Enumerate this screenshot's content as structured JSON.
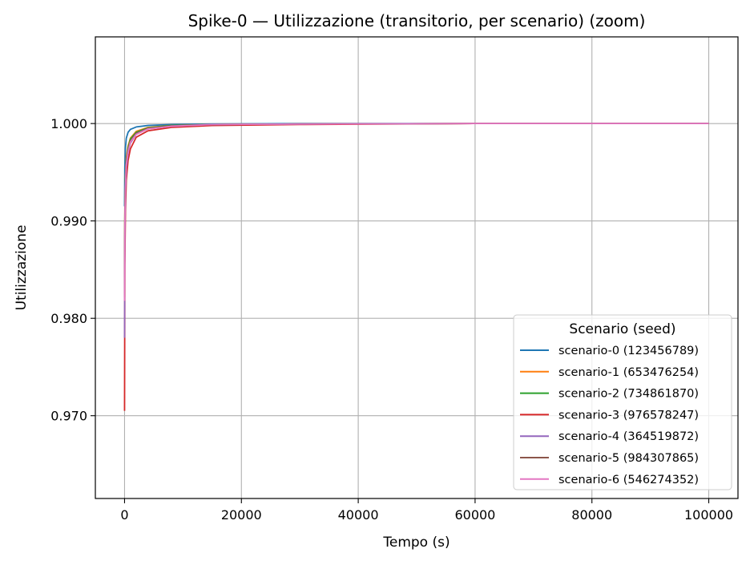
{
  "chart_data": {
    "type": "line",
    "title": "Spike-0 — Utilizzazione (transitorio, per scenario) (zoom)",
    "xlabel": "Tempo (s)",
    "ylabel": "Utilizzazione",
    "xlim": [
      -5000,
      105000
    ],
    "ylim": [
      0.9615,
      1.0089
    ],
    "xticks": [
      0,
      20000,
      40000,
      60000,
      80000,
      100000
    ],
    "xtick_labels": [
      "0",
      "20000",
      "40000",
      "60000",
      "80000",
      "100000"
    ],
    "yticks": [
      0.97,
      0.98,
      0.99,
      1.0
    ],
    "ytick_labels": [
      "0.970",
      "0.980",
      "0.990",
      "1.000"
    ],
    "grid": true,
    "legend": {
      "title": "Scenario (seed)",
      "placement": "lower-right"
    },
    "series": [
      {
        "name": "scenario-0 (123456789)",
        "color": "#1f77b4",
        "x": [
          0,
          50,
          150,
          300,
          600,
          1000,
          2000,
          4000,
          8000,
          15000,
          30000,
          60000,
          100000
        ],
        "y": [
          0.9915,
          0.9955,
          0.9975,
          0.9985,
          0.9991,
          0.9994,
          0.99965,
          0.9998,
          0.9999,
          0.99995,
          1.0,
          1.0,
          1.0
        ]
      },
      {
        "name": "scenario-1 (653476254)",
        "color": "#ff7f0e",
        "x": [
          0,
          50,
          150,
          300,
          600,
          1000,
          2000,
          4000,
          8000,
          15000,
          30000,
          60000,
          100000
        ],
        "y": [
          0.9835,
          0.991,
          0.9945,
          0.9965,
          0.9977,
          0.9985,
          0.9992,
          0.9996,
          0.9998,
          0.9999,
          0.99995,
          1.0,
          1.0
        ]
      },
      {
        "name": "scenario-2 (734861870)",
        "color": "#2ca02c",
        "x": [
          0,
          50,
          150,
          300,
          600,
          1000,
          2000,
          4000,
          8000,
          15000,
          30000,
          60000,
          100000
        ],
        "y": [
          0.9825,
          0.9905,
          0.994,
          0.9962,
          0.9975,
          0.9984,
          0.9991,
          0.99955,
          0.9998,
          0.9999,
          0.99995,
          1.0,
          1.0
        ]
      },
      {
        "name": "scenario-3 (976578247)",
        "color": "#d62728",
        "x": [
          0,
          50,
          150,
          300,
          600,
          1000,
          2000,
          4000,
          8000,
          15000,
          30000,
          60000,
          100000
        ],
        "y": [
          0.9705,
          0.9855,
          0.991,
          0.9942,
          0.9962,
          0.9974,
          0.9986,
          0.99925,
          0.9996,
          0.9998,
          0.9999,
          1.0,
          1.0
        ]
      },
      {
        "name": "scenario-4 (364519872)",
        "color": "#9467bd",
        "x": [
          0,
          50,
          150,
          300,
          600,
          1000,
          2000,
          4000,
          8000,
          15000,
          30000,
          60000,
          100000
        ],
        "y": [
          0.978,
          0.9885,
          0.993,
          0.9955,
          0.997,
          0.998,
          0.9989,
          0.99945,
          0.99975,
          0.9999,
          0.99995,
          1.0,
          1.0
        ]
      },
      {
        "name": "scenario-5 (984307865)",
        "color": "#8c564b",
        "x": [
          0,
          50,
          150,
          300,
          600,
          1000,
          2000,
          4000,
          8000,
          15000,
          30000,
          60000,
          100000
        ],
        "y": [
          0.9822,
          0.99,
          0.9938,
          0.996,
          0.9973,
          0.9982,
          0.999,
          0.9995,
          0.99975,
          0.9999,
          0.99995,
          1.0,
          1.0
        ]
      },
      {
        "name": "scenario-6 (546274352)",
        "color": "#e377c2",
        "x": [
          0,
          50,
          150,
          300,
          600,
          1000,
          2000,
          4000,
          8000,
          15000,
          30000,
          60000,
          100000
        ],
        "y": [
          0.9818,
          0.9895,
          0.9935,
          0.9958,
          0.9971,
          0.9981,
          0.9989,
          0.99945,
          0.99972,
          0.9999,
          0.99995,
          1.0,
          1.0
        ]
      }
    ]
  }
}
